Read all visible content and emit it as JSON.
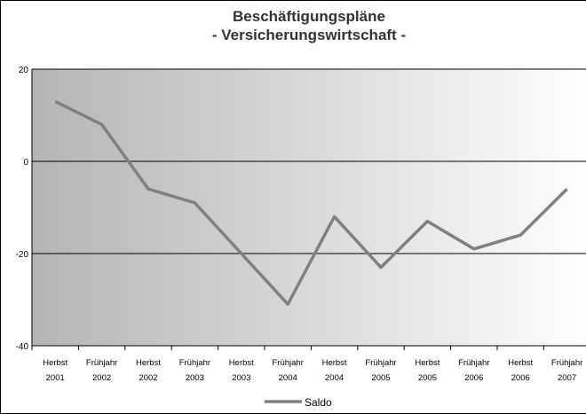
{
  "chart_data": {
    "type": "line",
    "title": [
      "Beschäftigungspläne",
      "- Versicherungswirtschaft -"
    ],
    "categories": [
      "Herbst 2001",
      "Frühjahr 2002",
      "Herbst 2002",
      "Frühjahr 2003",
      "Herbst 2003",
      "Frühjahr 2004",
      "Herbst 2004",
      "Frühjahr 2005",
      "Herbst 2005",
      "Frühjahr 2006",
      "Herbst 2006",
      "Frühjahr 2007"
    ],
    "series": [
      {
        "name": "Saldo",
        "color": "#808080",
        "values": [
          13,
          8,
          -6,
          -9,
          -20,
          -31,
          -12,
          -23,
          -13,
          -19,
          -16,
          -6
        ]
      }
    ],
    "ylim": [
      -40,
      20
    ],
    "yticks": [
      -40,
      -20,
      0,
      20
    ],
    "grid": true,
    "legend": "bottom"
  }
}
